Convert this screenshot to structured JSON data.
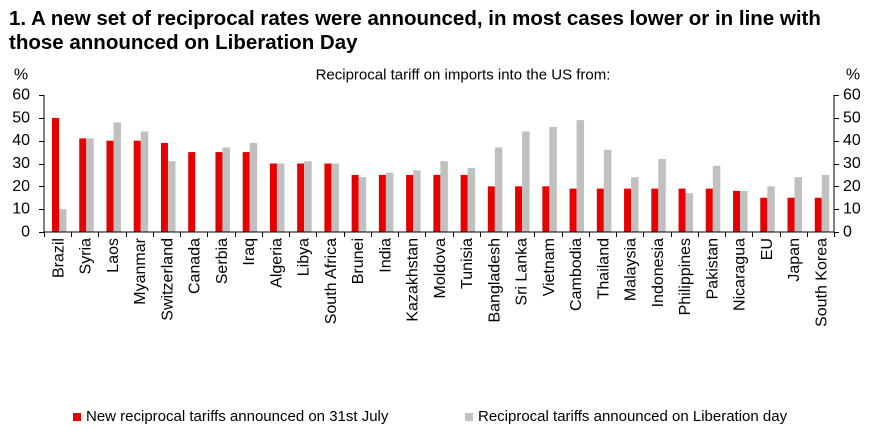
{
  "chart_data": {
    "type": "bar",
    "title": "1. A new set of reciprocal rates were announced, in most cases lower or in line with those announced on Liberation Day",
    "subtitle": "Reciprocal tariff on imports into the US from:",
    "ylabel": "%",
    "ylabel_right": "%",
    "ylim": [
      0,
      60
    ],
    "yticks": [
      0,
      10,
      20,
      30,
      40,
      50,
      60
    ],
    "grid": false,
    "legend_position": "bottom",
    "categories": [
      "Brazil",
      "Syria",
      "Laos",
      "Myanmar",
      "Switzerland",
      "Canada",
      "Serbia",
      "Iraq",
      "Algeria",
      "Libya",
      "South Africa",
      "Brunei",
      "India",
      "Kazakhstan",
      "Moldova",
      "Tunisia",
      "Bangladesh",
      "Sri Lanka",
      "Vietnam",
      "Cambodia",
      "Thailand",
      "Malaysia",
      "Indonesia",
      "Philippines",
      "Pakistan",
      "Nicaragua",
      "EU",
      "Japan",
      "South Korea"
    ],
    "series": [
      {
        "name": "New reciprocal tariffs announced on 31st July",
        "color": "#e60000",
        "values": [
          50,
          41,
          40,
          40,
          39,
          35,
          35,
          35,
          30,
          30,
          30,
          25,
          25,
          25,
          25,
          25,
          20,
          20,
          20,
          19,
          19,
          19,
          19,
          19,
          19,
          18,
          15,
          15,
          15
        ]
      },
      {
        "name": "Reciprocal tariffs announced on Liberation day",
        "color": "#c0c0c0",
        "values": [
          10,
          41,
          48,
          44,
          31,
          null,
          37,
          39,
          30,
          31,
          30,
          24,
          26,
          27,
          31,
          28,
          37,
          44,
          46,
          49,
          36,
          24,
          32,
          17,
          29,
          18,
          20,
          24,
          25
        ]
      }
    ]
  }
}
